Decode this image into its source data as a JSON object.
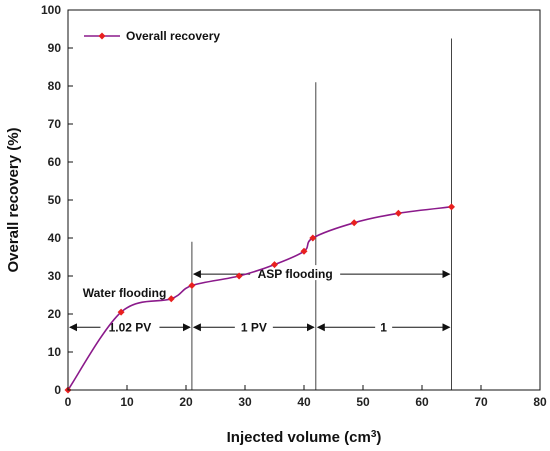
{
  "chart_data": {
    "type": "line",
    "xlabel": "Injected volume (cm",
    "xlabel_sup": "3",
    "xlabel_end": ")",
    "ylabel": "Overall recovery (%)",
    "xlim": [
      0,
      80
    ],
    "ylim": [
      0,
      100
    ],
    "xticks": [
      0,
      10,
      20,
      30,
      40,
      50,
      60,
      70,
      80
    ],
    "yticks": [
      0,
      10,
      20,
      30,
      40,
      50,
      60,
      70,
      80,
      90,
      100
    ],
    "grid": false,
    "legend_position": "top-left",
    "series": [
      {
        "name": "Overall recovery",
        "color": "#8B1A8B",
        "marker_color": "#E8201F",
        "x": [
          0,
          9,
          17.5,
          21,
          29,
          35,
          40,
          41.5,
          48.5,
          56,
          65
        ],
        "y": [
          0,
          20.5,
          24,
          27.5,
          30,
          33,
          36.5,
          40,
          44,
          46.5,
          48.2
        ]
      }
    ],
    "vlines": [
      {
        "x": 21,
        "y_top": 39
      },
      {
        "x": 42,
        "y_top": 81
      },
      {
        "x": 65,
        "y_top": 92.5
      }
    ],
    "annotations": [
      {
        "text": "Water flooding",
        "x": 2.5,
        "y": 25.5,
        "span": [
          0,
          21
        ],
        "span_y": 16.5,
        "span_label": "1.02 PV"
      },
      {
        "text": "ASP flooding",
        "x": 38.5,
        "y": 30.5,
        "span": [
          21,
          65
        ],
        "span_y": 30.5
      },
      {
        "text": "",
        "span": [
          21,
          42
        ],
        "span_y": 16.5,
        "span_label": "1 PV"
      },
      {
        "text": "",
        "span": [
          42,
          65
        ],
        "span_y": 16.5,
        "span_label": "1"
      }
    ]
  }
}
